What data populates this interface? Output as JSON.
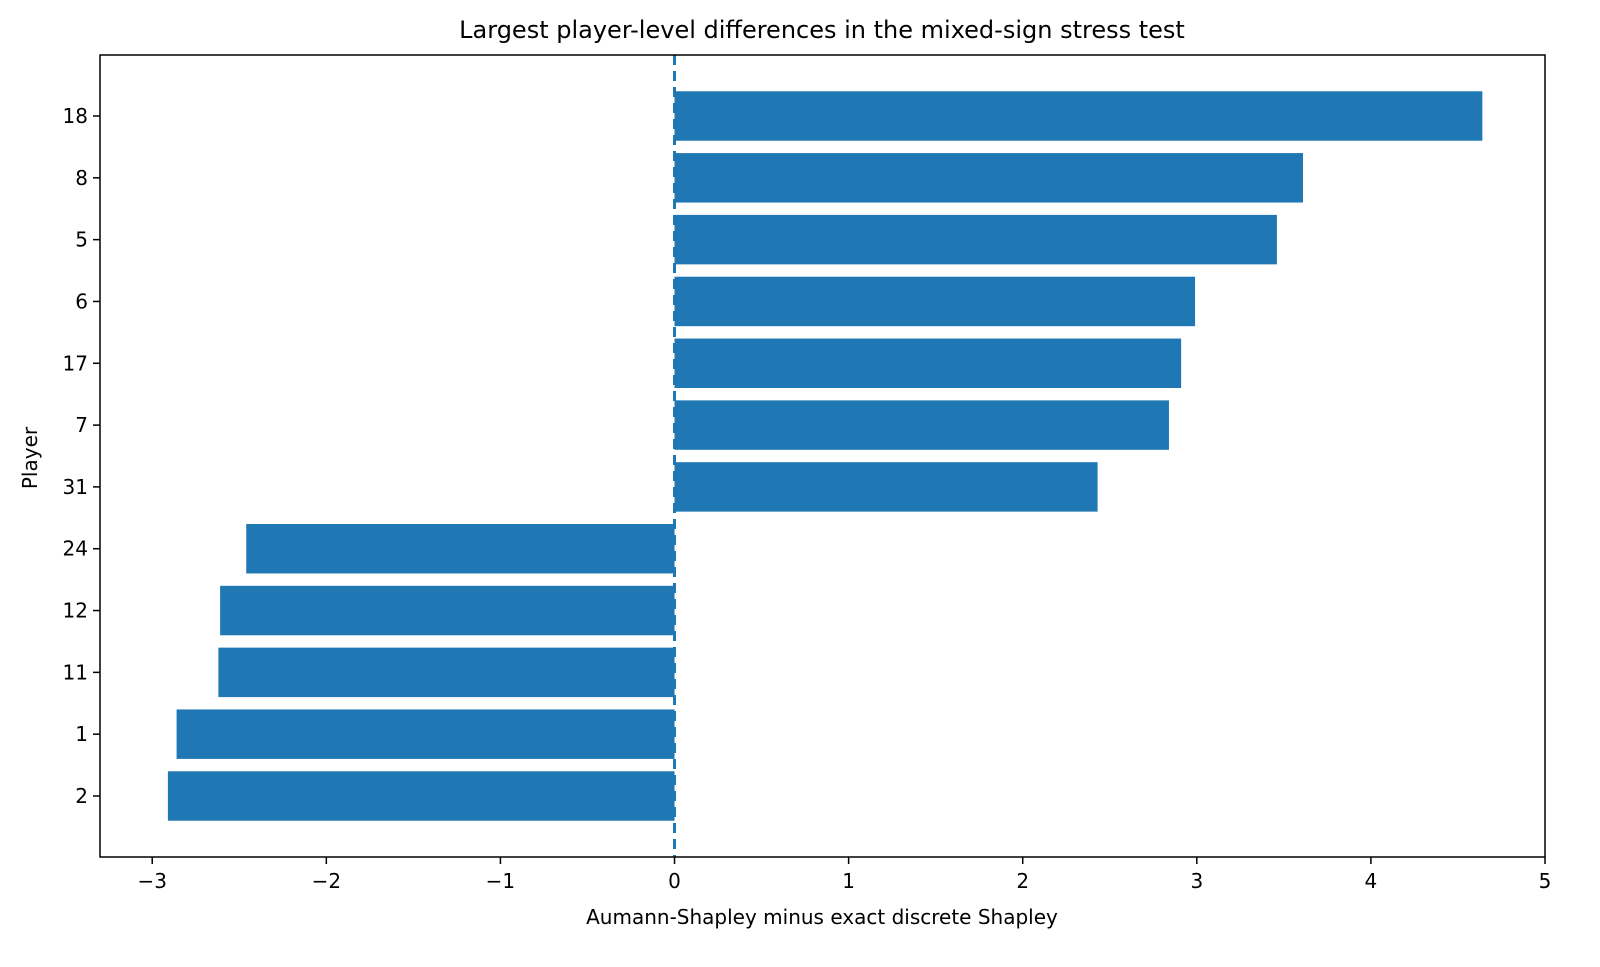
{
  "chart_data": {
    "type": "bar",
    "orientation": "horizontal",
    "title": "Largest player-level differences in the mixed-sign stress test",
    "xlabel": "Aumann-Shapley minus exact discrete Shapley",
    "ylabel": "Player",
    "categories": [
      "18",
      "8",
      "5",
      "6",
      "17",
      "7",
      "31",
      "24",
      "12",
      "11",
      "1",
      "2"
    ],
    "values": [
      4.64,
      3.61,
      3.46,
      2.99,
      2.91,
      2.84,
      2.43,
      -2.46,
      -2.61,
      -2.62,
      -2.86,
      -2.91
    ],
    "xlim": [
      -3.3,
      5.0
    ],
    "xticks": [
      -3,
      -2,
      -1,
      0,
      1,
      2,
      3,
      4,
      5
    ],
    "xtick_labels": [
      "−3",
      "−2",
      "−1",
      "0",
      "1",
      "2",
      "3",
      "4",
      "5"
    ],
    "bar_color": "#1f77b4",
    "reference_line": {
      "x": 0,
      "style": "dashed",
      "color": "#1f77b4"
    },
    "grid": false,
    "legend": "none"
  }
}
